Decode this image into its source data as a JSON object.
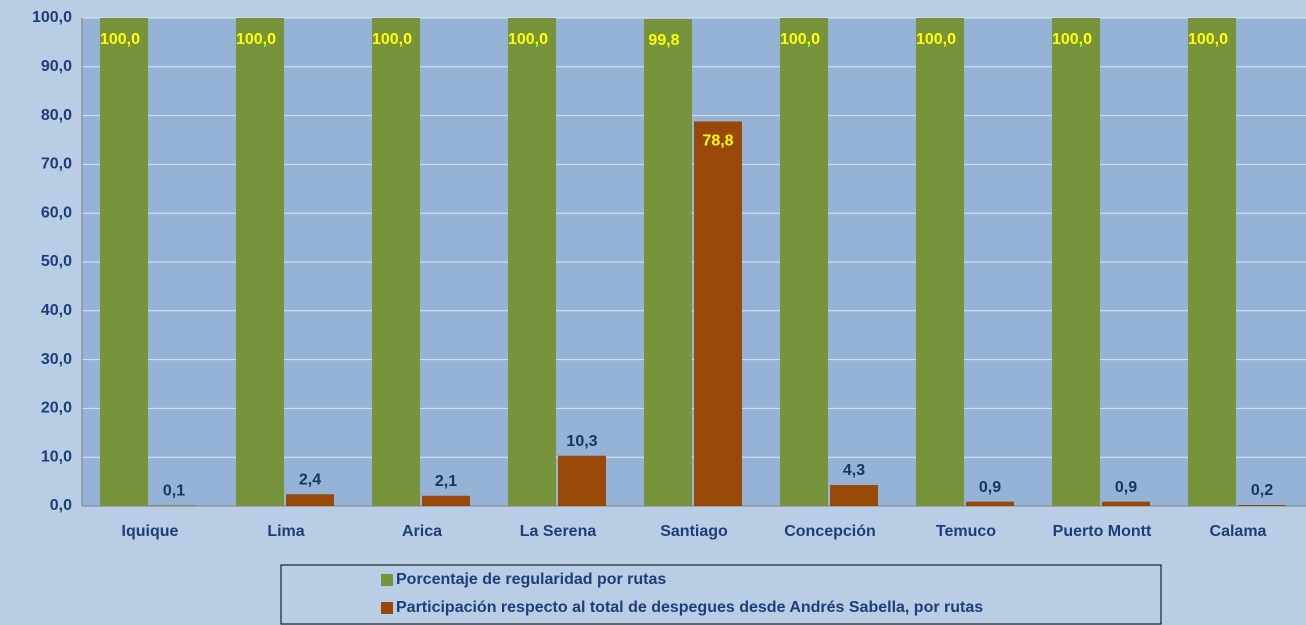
{
  "chart_data": {
    "type": "bar",
    "categories": [
      "Iquique",
      "Lima",
      "Arica",
      "La Serena",
      "Santiago",
      "Concepción",
      "Temuco",
      "Puerto Montt",
      "Calama"
    ],
    "series": [
      {
        "name": "Porcentaje de regularidad por rutas",
        "color": "#77933c",
        "values": [
          100.0,
          100.0,
          100.0,
          100.0,
          99.8,
          100.0,
          100.0,
          100.0,
          100.0
        ],
        "value_labels": [
          "100,0",
          "100,0",
          "100,0",
          "100,0",
          "99,8",
          "100,0",
          "100,0",
          "100,0",
          "100,0"
        ]
      },
      {
        "name": "Participación respecto al total de despegues desde Andrés Sabella, por rutas",
        "color": "#984807",
        "values": [
          0.1,
          2.4,
          2.1,
          10.3,
          78.8,
          4.3,
          0.9,
          0.9,
          0.2
        ],
        "value_labels": [
          "0,1",
          "2,4",
          "2,1",
          "10,3",
          "78,8",
          "4,3",
          "0,9",
          "0,9",
          "0,2"
        ]
      }
    ],
    "ylim": [
      0,
      100
    ],
    "yticks": [
      {
        "value": 0,
        "label": "0,0"
      },
      {
        "value": 10,
        "label": "10,0"
      },
      {
        "value": 20,
        "label": "20,0"
      },
      {
        "value": 30,
        "label": "30,0"
      },
      {
        "value": 40,
        "label": "40,0"
      },
      {
        "value": 50,
        "label": "50,0"
      },
      {
        "value": 60,
        "label": "60,0"
      },
      {
        "value": 70,
        "label": "70,0"
      },
      {
        "value": 80,
        "label": "80,0"
      },
      {
        "value": 90,
        "label": "90,0"
      },
      {
        "value": 100,
        "label": "100,0"
      }
    ],
    "grid": true,
    "legend": "bottom"
  }
}
